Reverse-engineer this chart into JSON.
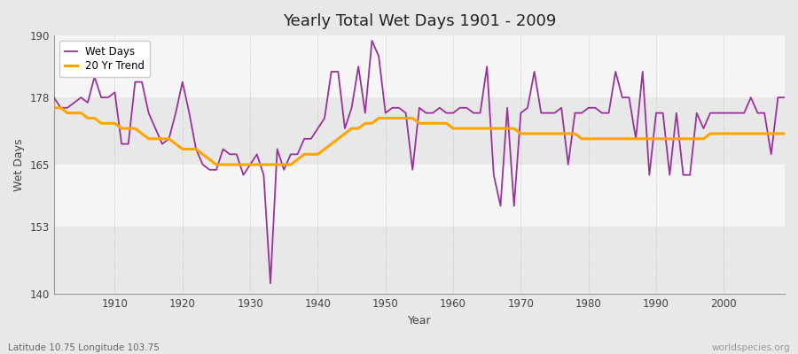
{
  "title": "Yearly Total Wet Days 1901 - 2009",
  "xlabel": "Year",
  "ylabel": "Wet Days",
  "ylim": [
    140,
    190
  ],
  "xlim": [
    1901,
    2009
  ],
  "yticks": [
    140,
    153,
    165,
    178,
    190
  ],
  "xticks": [
    1910,
    1920,
    1930,
    1940,
    1950,
    1960,
    1970,
    1980,
    1990,
    2000
  ],
  "wet_days_color": "#993399",
  "trend_color": "#FFA500",
  "fig_bg_color": "#E8E8E8",
  "plot_bg_color": "#F0F0F0",
  "band_color1": "#E8E8E8",
  "band_color2": "#F5F5F5",
  "subtitle": "Latitude 10.75 Longitude 103.75",
  "watermark": "worldspecies.org",
  "wet_days": [
    178,
    176,
    176,
    177,
    178,
    177,
    182,
    178,
    178,
    179,
    169,
    169,
    181,
    181,
    175,
    172,
    169,
    170,
    175,
    181,
    175,
    168,
    165,
    164,
    164,
    168,
    167,
    167,
    163,
    165,
    167,
    163,
    142,
    168,
    164,
    167,
    167,
    170,
    170,
    172,
    174,
    183,
    183,
    172,
    176,
    184,
    175,
    189,
    186,
    175,
    176,
    176,
    175,
    164,
    176,
    175,
    175,
    176,
    175,
    175,
    176,
    176,
    175,
    175,
    184,
    163,
    157,
    176,
    157,
    175,
    176,
    183,
    175,
    175,
    175,
    176,
    165,
    175,
    175,
    176,
    176,
    175,
    175,
    183,
    178,
    178,
    170,
    183,
    163,
    175,
    175,
    163,
    175,
    163,
    163,
    175,
    172,
    175,
    175,
    175,
    175,
    175,
    175,
    178,
    175,
    175,
    167,
    178,
    178
  ],
  "trend_20yr": [
    176,
    176,
    175,
    175,
    175,
    174,
    174,
    173,
    173,
    173,
    172,
    172,
    172,
    171,
    170,
    170,
    170,
    170,
    169,
    168,
    168,
    168,
    167,
    166,
    165,
    165,
    165,
    165,
    165,
    165,
    165,
    165,
    165,
    165,
    165,
    165,
    166,
    167,
    167,
    167,
    168,
    169,
    170,
    171,
    172,
    172,
    173,
    173,
    174,
    174,
    174,
    174,
    174,
    174,
    173,
    173,
    173,
    173,
    173,
    172,
    172,
    172,
    172,
    172,
    172,
    172,
    172,
    172,
    172,
    171,
    171,
    171,
    171,
    171,
    171,
    171,
    171,
    171,
    170,
    170,
    170,
    170,
    170,
    170,
    170,
    170,
    170,
    170,
    170,
    170,
    170,
    170,
    170,
    170,
    170,
    170,
    170,
    171,
    171,
    171,
    171,
    171,
    171,
    171,
    171,
    171,
    171,
    171,
    171
  ]
}
